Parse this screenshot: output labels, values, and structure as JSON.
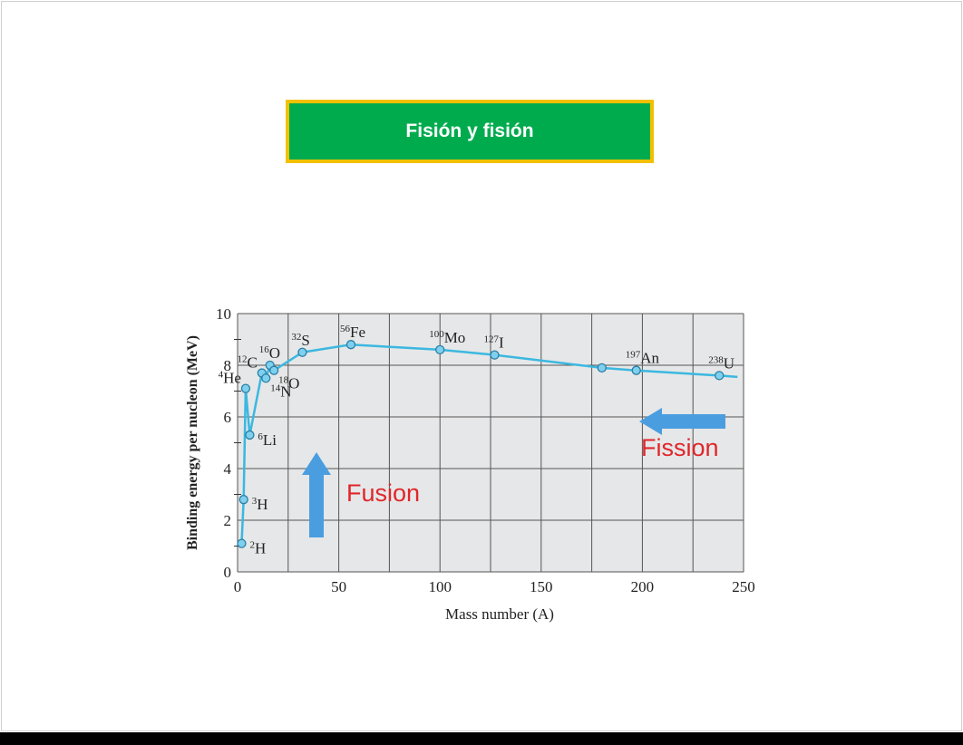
{
  "slide": {
    "title": "Fisión y fisión"
  },
  "chart_data": {
    "type": "line",
    "xlabel": "Mass number (A)",
    "ylabel": "Binding energy per nucleon (MeV)",
    "xlim": [
      0,
      250
    ],
    "ylim": [
      0,
      10
    ],
    "xticks": [
      "0",
      "50",
      "100",
      "150",
      "200",
      "250"
    ],
    "yticks": [
      "0",
      "2",
      "4",
      "6",
      "8",
      "10"
    ],
    "grid": true,
    "colors": {
      "line": "#3bb8e0",
      "grid": "#555555",
      "plot_bg": "#e6e7e8",
      "arrow": "#4a9ee0",
      "annotation": "#e0262a"
    },
    "series": [
      {
        "points": [
          {
            "x": 2,
            "y": 1.1,
            "mass": "2",
            "symbol": "H",
            "label_side": "right"
          },
          {
            "x": 3,
            "y": 2.8,
            "mass": "3",
            "symbol": "H",
            "label_side": "right"
          },
          {
            "x": 4,
            "y": 7.1,
            "mass": "4",
            "symbol": "He",
            "label_side": "left"
          },
          {
            "x": 6,
            "y": 5.3,
            "mass": "6",
            "symbol": "Li",
            "label_side": "right"
          },
          {
            "x": 12,
            "y": 7.7,
            "mass": "12",
            "symbol": "C",
            "label_side": "left"
          },
          {
            "x": 14,
            "y": 7.5,
            "mass": "14",
            "symbol": "N",
            "label_side": "right-below"
          },
          {
            "x": 16,
            "y": 8.0,
            "mass": "16",
            "symbol": "O",
            "label_side": "above"
          },
          {
            "x": 18,
            "y": 7.8,
            "mass": "18",
            "symbol": "O",
            "label_side": "right-below"
          },
          {
            "x": 32,
            "y": 8.5,
            "mass": "32",
            "symbol": "S",
            "label_side": "above"
          },
          {
            "x": 56,
            "y": 8.8,
            "mass": "56",
            "symbol": "Fe",
            "label_side": "above"
          },
          {
            "x": 100,
            "y": 8.6,
            "mass": "100",
            "symbol": "Mo",
            "label_side": "above"
          },
          {
            "x": 127,
            "y": 8.4,
            "mass": "127",
            "symbol": "I",
            "label_side": "above"
          },
          {
            "x": 180,
            "y": 7.9,
            "mass": "",
            "symbol": "",
            "label_side": "none"
          },
          {
            "x": 197,
            "y": 7.8,
            "mass": "197",
            "symbol": "An",
            "label_side": "above"
          },
          {
            "x": 238,
            "y": 7.6,
            "mass": "238",
            "symbol": "U",
            "label_side": "above"
          }
        ],
        "tail": [
          {
            "x": 247,
            "y": 7.55
          }
        ]
      }
    ],
    "annotations": [
      {
        "text": "Fusion",
        "direction": "up"
      },
      {
        "text": "Fission",
        "direction": "left"
      }
    ]
  }
}
